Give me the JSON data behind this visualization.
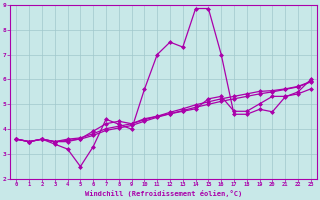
{
  "title": "",
  "xlabel": "Windchill (Refroidissement éolien,°C)",
  "ylabel": "",
  "xlim": [
    -0.5,
    23.5
  ],
  "ylim": [
    2,
    9
  ],
  "xticks": [
    0,
    1,
    2,
    3,
    4,
    5,
    6,
    7,
    8,
    9,
    10,
    11,
    12,
    13,
    14,
    15,
    16,
    17,
    18,
    19,
    20,
    21,
    22,
    23
  ],
  "yticks": [
    2,
    3,
    4,
    5,
    6,
    7,
    8,
    9
  ],
  "background_color": "#c8e8e8",
  "grid_color": "#a0c8cc",
  "line_color": "#aa00aa",
  "marker": "D",
  "markersize": 2.0,
  "linewidth": 0.9,
  "series": [
    [
      3.6,
      3.5,
      3.6,
      3.4,
      3.2,
      2.5,
      3.3,
      4.4,
      4.2,
      4.0,
      5.6,
      7.0,
      7.5,
      7.3,
      8.85,
      8.85,
      7.0,
      4.6,
      4.6,
      4.8,
      4.7,
      5.3,
      5.5,
      6.0
    ],
    [
      3.6,
      3.5,
      3.6,
      3.5,
      3.55,
      3.6,
      3.75,
      3.95,
      4.05,
      4.15,
      4.32,
      4.48,
      4.62,
      4.75,
      4.88,
      5.0,
      5.12,
      5.22,
      5.32,
      5.42,
      5.5,
      5.6,
      5.7,
      5.9
    ],
    [
      3.6,
      3.5,
      3.6,
      3.5,
      3.6,
      3.65,
      3.82,
      4.02,
      4.12,
      4.22,
      4.38,
      4.52,
      4.68,
      4.82,
      4.98,
      5.1,
      5.22,
      5.32,
      5.42,
      5.52,
      5.55,
      5.62,
      5.72,
      5.92
    ],
    [
      3.6,
      3.5,
      3.6,
      3.5,
      3.5,
      3.62,
      3.92,
      4.22,
      4.32,
      4.22,
      4.42,
      4.52,
      4.62,
      4.72,
      4.82,
      5.22,
      5.32,
      4.72,
      4.72,
      5.02,
      5.32,
      5.32,
      5.42,
      5.62
    ]
  ]
}
